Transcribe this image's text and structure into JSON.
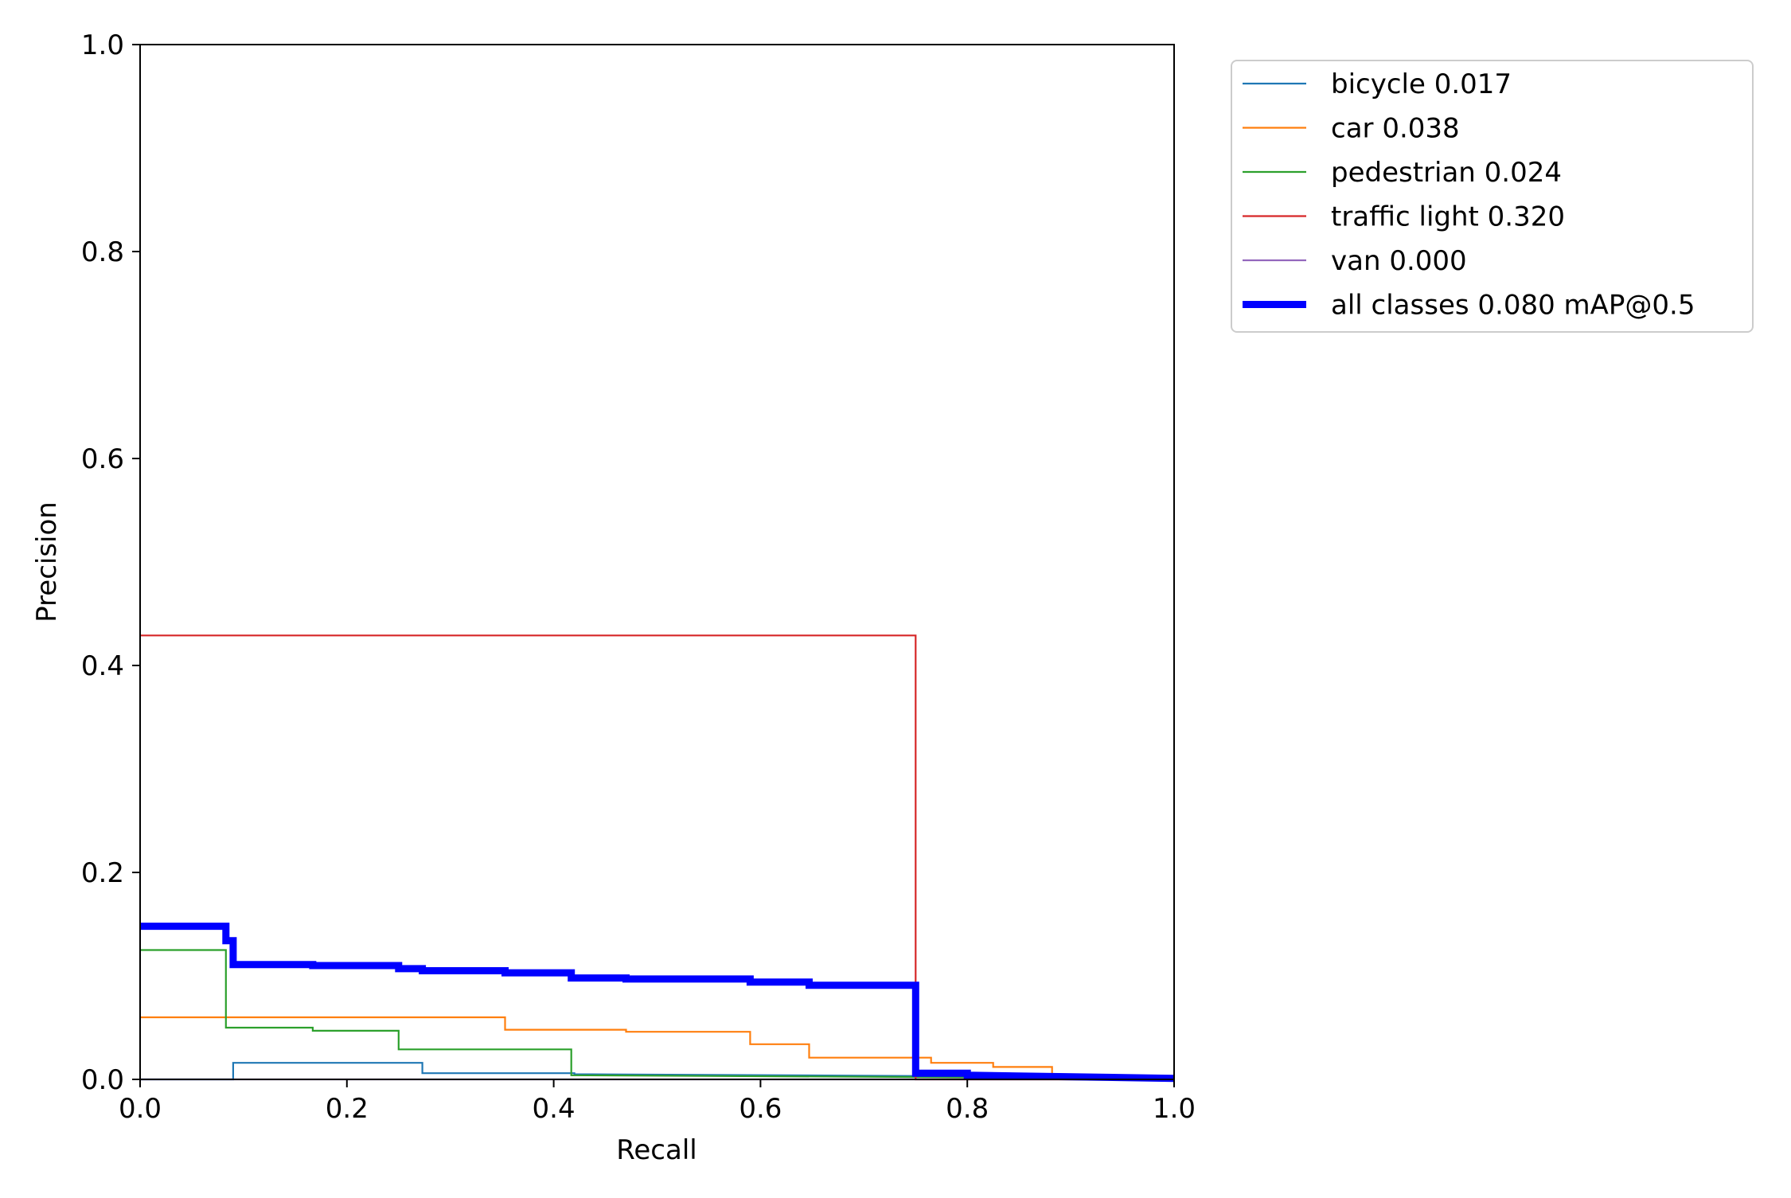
{
  "chart_data": {
    "type": "line",
    "title": "",
    "xlabel": "Recall",
    "ylabel": "Precision",
    "xlim": [
      0.0,
      1.0
    ],
    "ylim": [
      0.0,
      1.0
    ],
    "x_ticks": [
      "0.0",
      "0.2",
      "0.4",
      "0.6",
      "0.8",
      "1.0"
    ],
    "y_ticks": [
      "0.0",
      "0.2",
      "0.4",
      "0.6",
      "0.8",
      "1.0"
    ],
    "grid": false,
    "legend_position": "outside-top-right",
    "series": [
      {
        "name": "bicycle 0.017",
        "color": "#1f77b4",
        "emphasis": false,
        "x": [
          0.0,
          0.09,
          0.09,
          0.273,
          0.273,
          0.42,
          0.42,
          1.0
        ],
        "y": [
          0.0,
          0.0,
          0.016,
          0.016,
          0.006,
          0.006,
          0.005,
          0.002
        ]
      },
      {
        "name": "car 0.038",
        "color": "#ff7f0e",
        "emphasis": false,
        "x": [
          0.0,
          0.353,
          0.353,
          0.47,
          0.47,
          0.59,
          0.59,
          0.647,
          0.647,
          0.765,
          0.765,
          0.825,
          0.825,
          0.882,
          0.882,
          1.0
        ],
        "y": [
          0.06,
          0.06,
          0.048,
          0.048,
          0.046,
          0.046,
          0.034,
          0.034,
          0.021,
          0.021,
          0.016,
          0.016,
          0.012,
          0.012,
          0.003,
          0.001
        ]
      },
      {
        "name": "pedestrian 0.024",
        "color": "#2ca02c",
        "emphasis": false,
        "x": [
          0.0,
          0.083,
          0.083,
          0.167,
          0.167,
          0.25,
          0.25,
          0.417,
          0.417,
          1.0
        ],
        "y": [
          0.125,
          0.125,
          0.05,
          0.05,
          0.047,
          0.047,
          0.029,
          0.029,
          0.004,
          0.001
        ]
      },
      {
        "name": "traffic light 0.320",
        "color": "#d62728",
        "emphasis": false,
        "x": [
          0.0,
          0.75,
          0.75,
          1.0
        ],
        "y": [
          0.429,
          0.429,
          0.0,
          0.0
        ]
      },
      {
        "name": "van 0.000",
        "color": "#9467bd",
        "emphasis": false,
        "x": [
          0.0,
          1.0
        ],
        "y": [
          0.0,
          0.0
        ]
      },
      {
        "name": "all classes 0.080 mAP@0.5",
        "color": "#0000ff",
        "emphasis": true,
        "x": [
          0.0,
          0.083,
          0.083,
          0.09,
          0.09,
          0.167,
          0.167,
          0.25,
          0.25,
          0.273,
          0.273,
          0.353,
          0.353,
          0.417,
          0.417,
          0.47,
          0.47,
          0.59,
          0.59,
          0.647,
          0.647,
          0.75,
          0.75,
          0.8,
          0.8,
          1.0
        ],
        "y": [
          0.148,
          0.148,
          0.134,
          0.134,
          0.111,
          0.111,
          0.11,
          0.11,
          0.107,
          0.107,
          0.105,
          0.105,
          0.103,
          0.103,
          0.098,
          0.098,
          0.097,
          0.097,
          0.094,
          0.094,
          0.091,
          0.091,
          0.006,
          0.006,
          0.004,
          0.001
        ]
      }
    ]
  }
}
